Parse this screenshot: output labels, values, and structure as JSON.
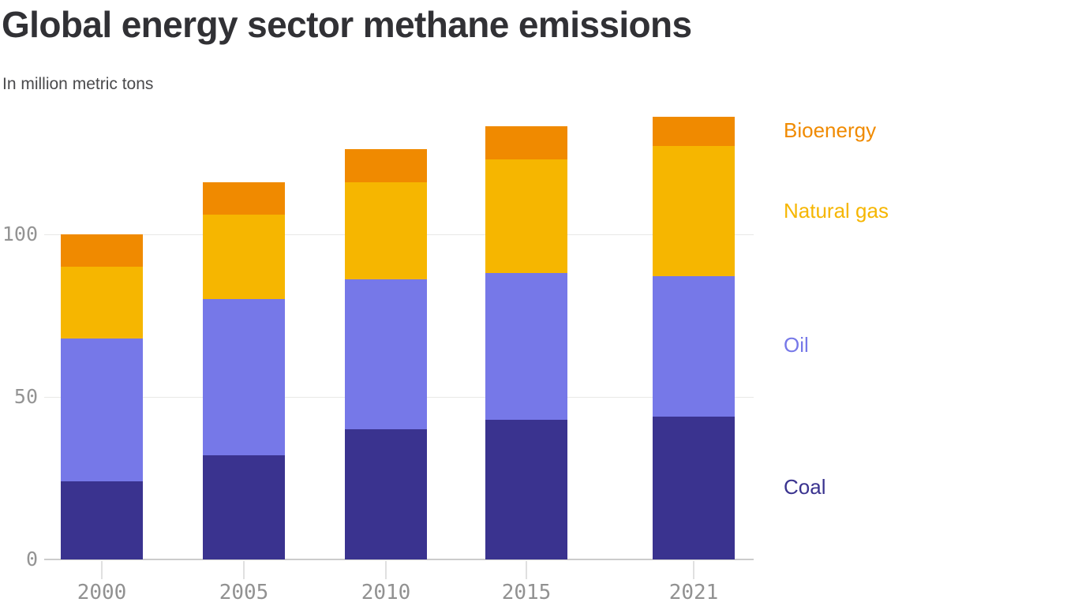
{
  "title": "Global energy sector methane emissions",
  "subtitle": "In million metric tons",
  "chart_data": {
    "type": "bar",
    "stacked": true,
    "title": "Global energy sector methane emissions",
    "subtitle_units": "In million metric tons",
    "categories": [
      "2000",
      "2005",
      "2010",
      "2015",
      "2021"
    ],
    "series": [
      {
        "name": "Coal",
        "color": "#3A338F",
        "values": [
          24,
          32,
          40,
          43,
          44
        ]
      },
      {
        "name": "Oil",
        "color": "#7678E8",
        "values": [
          44,
          48,
          46,
          45,
          43
        ]
      },
      {
        "name": "Natural gas",
        "color": "#F6B600",
        "values": [
          22,
          26,
          30,
          35,
          40
        ]
      },
      {
        "name": "Bioenergy",
        "color": "#F08A00",
        "values": [
          10,
          10,
          10,
          10,
          9
        ]
      }
    ],
    "totals": [
      100,
      116,
      126,
      133,
      136
    ],
    "xlabel": "",
    "ylabel": "million metric tons",
    "y_ticks": [
      0,
      50,
      100
    ],
    "y_tick_labels": [
      "0",
      "50",
      "100"
    ],
    "ylim": [
      0,
      140
    ],
    "grid": "horizontal",
    "legend_position": "right",
    "legend_order_top_to_bottom": [
      "Bioenergy",
      "Natural gas",
      "Oil",
      "Coal"
    ]
  },
  "colors": {
    "title_text": "#313135",
    "subtitle_text": "#4a4a4c",
    "tick_text": "#949494",
    "gridline": "#e8e8e6",
    "axis_line": "#cccccc"
  }
}
